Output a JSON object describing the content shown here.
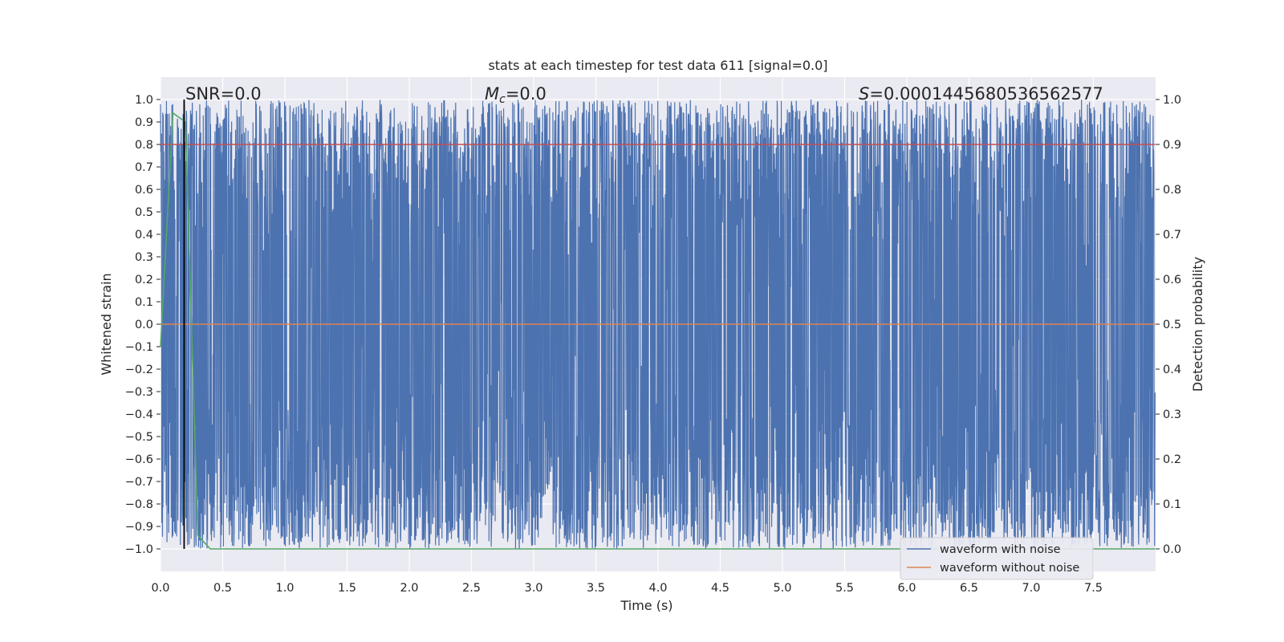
{
  "chart_data": {
    "type": "line",
    "title": "stats at each timestep for test data 611 [signal=0.0]",
    "xlabel": "Time (s)",
    "ylabel": "Whitened strain",
    "y2label": "Detection probability",
    "xlim": [
      0,
      8
    ],
    "ylim": [
      -1.1,
      1.1
    ],
    "y2lim": [
      -0.05,
      1.05
    ],
    "x_ticks": [
      "0.0",
      "0.5",
      "1.0",
      "1.5",
      "2.0",
      "2.5",
      "3.0",
      "3.5",
      "4.0",
      "4.5",
      "5.0",
      "5.5",
      "6.0",
      "6.5",
      "7.0",
      "7.5"
    ],
    "y_ticks": [
      "1.0",
      "0.9",
      "0.8",
      "0.7",
      "0.6",
      "0.5",
      "0.4",
      "0.3",
      "0.2",
      "0.1",
      "0.0",
      "−0.1",
      "−0.2",
      "−0.3",
      "−0.4",
      "−0.5",
      "−0.6",
      "−0.7",
      "−0.8",
      "−0.9",
      "−1.0"
    ],
    "y2_ticks": [
      "1.0",
      "0.9",
      "0.8",
      "0.7",
      "0.6",
      "0.5",
      "0.4",
      "0.3",
      "0.2",
      "0.1",
      "0.0"
    ],
    "grid": true,
    "legend_position": "lower-right",
    "annotations": {
      "snr": "SNR=0.0",
      "mc_symbol": "M",
      "mc_sub": "c",
      "mc_value": "=0.0",
      "s_symbol": "S",
      "s_value": "=0.0001445680536562577"
    },
    "series": [
      {
        "name": "waveform with noise",
        "color": "#4c72b0",
        "description_range": [
          -1.0,
          1.0
        ]
      },
      {
        "name": "waveform without noise",
        "color": "#dd8452",
        "values_constant": 0.0
      },
      {
        "color": "#55a868",
        "axis": "right",
        "x": [
          0.0,
          0.1,
          0.2,
          0.3,
          0.4,
          8.0
        ],
        "values": [
          0.45,
          0.97,
          0.95,
          0.03,
          0.0,
          0.0
        ]
      }
    ],
    "threshold": {
      "axis": "right",
      "value": 0.9,
      "color": "#c44e52"
    },
    "vline": {
      "x": 0.19,
      "color": "#000000"
    }
  }
}
